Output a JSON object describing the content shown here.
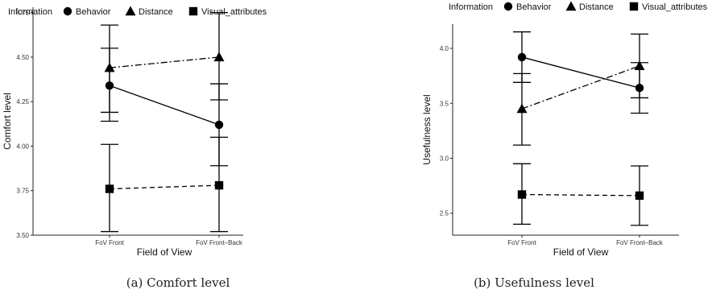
{
  "chart_data": [
    {
      "type": "line",
      "legend_title": "Information",
      "legend_position": "top-left",
      "xlabel": "Field of View",
      "ylabel": "Comfort level",
      "caption": "(a) Comfort level",
      "categories": [
        "FoV Front",
        "FoV Front–Back"
      ],
      "ylim": [
        3.5,
        4.78
      ],
      "yticks": [
        "3.50",
        "3.75",
        "4.00",
        "4.25",
        "4.50",
        "4.75"
      ],
      "grid": false,
      "series": [
        {
          "name": "Behavior",
          "marker": "circle",
          "line": "solid",
          "values": [
            4.34,
            4.12
          ],
          "err_low": [
            4.14,
            3.89
          ],
          "err_high": [
            4.55,
            4.35
          ]
        },
        {
          "name": "Distance",
          "marker": "triangle",
          "line": "dashdot",
          "values": [
            4.44,
            4.5
          ],
          "err_low": [
            4.19,
            4.26
          ],
          "err_high": [
            4.68,
            4.75
          ]
        },
        {
          "name": "Visual_attributes",
          "marker": "square",
          "line": "dashed",
          "values": [
            3.76,
            3.78
          ],
          "err_low": [
            3.52,
            3.52
          ],
          "err_high": [
            4.01,
            4.05
          ]
        }
      ]
    },
    {
      "type": "line",
      "legend_title": "Information",
      "legend_position": "top-left",
      "xlabel": "Field of View",
      "ylabel": "Usefulness level",
      "caption": "(b) Usefulness level",
      "categories": [
        "FoV Front",
        "FoV Front–Back"
      ],
      "ylim": [
        2.3,
        4.22
      ],
      "yticks": [
        "2.5",
        "3.0",
        "3.5",
        "4.0"
      ],
      "grid": false,
      "series": [
        {
          "name": "Behavior",
          "marker": "circle",
          "line": "solid",
          "values": [
            3.92,
            3.64
          ],
          "err_low": [
            3.69,
            3.41
          ],
          "err_high": [
            4.15,
            3.87
          ]
        },
        {
          "name": "Distance",
          "marker": "triangle",
          "line": "dashdot",
          "values": [
            3.45,
            3.84
          ],
          "err_low": [
            3.12,
            3.55
          ],
          "err_high": [
            3.77,
            4.13
          ]
        },
        {
          "name": "Visual_attributes",
          "marker": "square",
          "line": "dashed",
          "values": [
            2.67,
            2.66
          ],
          "err_low": [
            2.4,
            2.39
          ],
          "err_high": [
            2.95,
            2.93
          ]
        }
      ]
    }
  ]
}
